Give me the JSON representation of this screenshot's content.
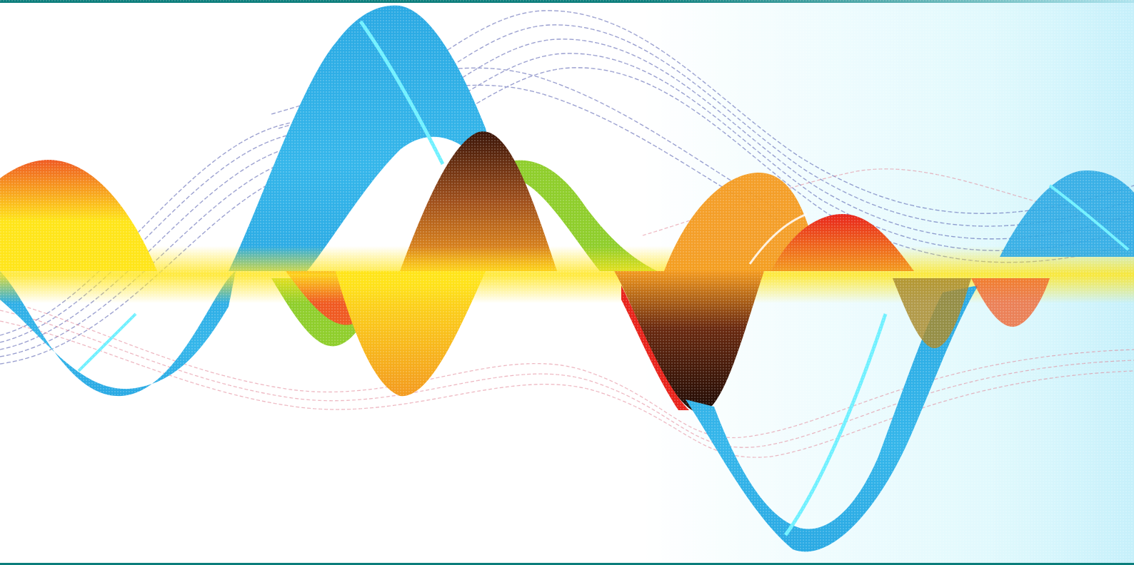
{
  "image": {
    "subject": "abstract-wave-ribbons",
    "palette": {
      "frame": "#0a7d7b",
      "blue": "#2aa9e3",
      "blue_highlight": "#6ff0ff",
      "orange": "#f39a1e",
      "red_orange": "#ef5a22",
      "yellow": "#ffe51a",
      "green": "#8fce2c",
      "dark_brown": "#3a1408",
      "red": "#e8231b",
      "line_blue": "#4650a8",
      "line_pink": "#e07b8e",
      "cyan_haze": "#c8f4fb"
    }
  }
}
